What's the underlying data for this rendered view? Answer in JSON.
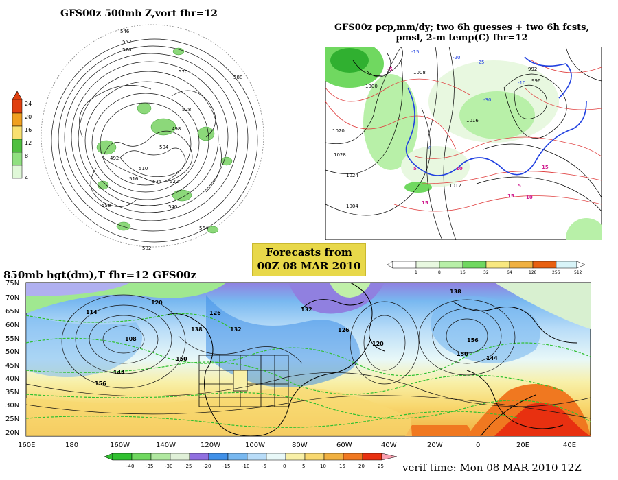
{
  "panels": {
    "top_left": {
      "title": "GFS00z  500mb Z,vort    fhr=12",
      "colorbar_ticks": [
        "24",
        "20",
        "16",
        "12",
        "8",
        "4"
      ],
      "colorbar_colors": [
        "#e04010",
        "#f0a020",
        "#f8e070",
        "#50c040",
        "#90e080",
        "#e0f8d8"
      ],
      "contour_labels": [
        "546",
        "552",
        "570",
        "576",
        "588",
        "534",
        "510",
        "504",
        "498",
        "492",
        "516",
        "522",
        "528",
        "540",
        "558",
        "564",
        "582"
      ]
    },
    "top_right": {
      "title_line1": "GFS00z pcp,mm/dy; two 6h guesses + two 6h fcsts,",
      "title_line2": "pmsl, 2-m temp(C)  fhr=12",
      "isobar_labels": [
        "1020",
        "1024",
        "1028",
        "1000",
        "1008",
        "1012",
        "1016",
        "992",
        "996",
        "1004"
      ],
      "temp_labels": [
        "-5",
        "0",
        "5",
        "10",
        "15",
        "20",
        "-10",
        "-15",
        "-20",
        "-25",
        "-30"
      ],
      "pcp_ticks": [
        "1",
        "8",
        "16",
        "32",
        "64",
        "128",
        "256",
        "512"
      ],
      "pcp_colors": [
        "#e8f8e0",
        "#b8f0a8",
        "#70d860",
        "#30b030",
        "#f8e880",
        "#f0b040",
        "#e86010",
        "#e0d0e8"
      ]
    },
    "banner": {
      "line1": "Forecasts from",
      "line2": "00Z 08 MAR 2010"
    },
    "bottom": {
      "title": "850mb hgt(dm),T   fhr=12 GFS00z",
      "lat_labels": [
        "75N",
        "70N",
        "65N",
        "60N",
        "55N",
        "50N",
        "45N",
        "40N",
        "35N",
        "30N",
        "25N",
        "20N"
      ],
      "lon_labels": [
        "160E",
        "180",
        "160W",
        "140W",
        "120W",
        "100W",
        "80W",
        "60W",
        "40W",
        "20W",
        "0",
        "20E",
        "40E"
      ],
      "height_labels": [
        "114",
        "108",
        "120",
        "126",
        "132",
        "138",
        "144",
        "150",
        "156",
        "120",
        "126",
        "132",
        "138",
        "144",
        "150",
        "156"
      ],
      "temp_ticks": [
        "-40",
        "-35",
        "-30",
        "-25",
        "-20",
        "-15",
        "-10",
        "-5",
        "0",
        "5",
        "10",
        "15",
        "20",
        "25"
      ],
      "temp_colors": [
        "#30c030",
        "#70d860",
        "#b0e8a0",
        "#e0f0d8",
        "#9070e0",
        "#4090e8",
        "#78b8f0",
        "#b8dcf8",
        "#e8f8f8",
        "#f8f0a8",
        "#f8d870",
        "#f0b040",
        "#f07820",
        "#e83010",
        "#f8a0b0"
      ]
    },
    "verif": "verif time: Mon 08 MAR 2010 12Z"
  }
}
